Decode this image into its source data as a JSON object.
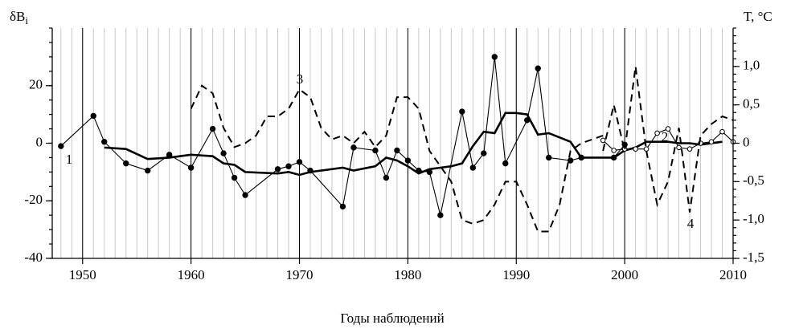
{
  "chart_data": {
    "type": "line",
    "xlabel": "Годы наблюдений",
    "ylabel": "δB",
    "ylabel_subscript": "i",
    "y2label": "T, °C",
    "xlim": [
      1947.2,
      2010
    ],
    "xticks": [
      1950,
      1960,
      1970,
      1980,
      1990,
      2000,
      2010
    ],
    "ylim": [
      -40,
      40
    ],
    "yticks": [
      -40,
      -20,
      0,
      20
    ],
    "y2lim": [
      -1.5,
      1.5
    ],
    "y2ticks": [
      {
        "value": -1.5,
        "label": "-1,5"
      },
      {
        "value": -1.0,
        "label": "-1,0"
      },
      {
        "value": -0.5,
        "label": "-0,5"
      },
      0,
      {
        "value": 0.5,
        "label": "0,5"
      },
      {
        "value": 1.0,
        "label": "1,0"
      }
    ],
    "grid": true,
    "series": [
      {
        "name": "1",
        "color": "#000",
        "style": "dots",
        "x": [
          1948,
          1951,
          1952,
          1954,
          1956,
          1958,
          1960,
          1962,
          1963,
          1964,
          1965,
          1968,
          1969,
          1970,
          1971,
          1974,
          1975,
          1977,
          1978,
          1979,
          1980,
          1981,
          1982,
          1983,
          1985,
          1986,
          1987,
          1988,
          1989,
          1991,
          1992,
          1993,
          1995,
          1996,
          1999,
          2000
        ],
        "values": [
          -1,
          9.5,
          0.5,
          -7,
          -9.5,
          -4,
          -8.5,
          5,
          -3.5,
          -12,
          -18,
          -9,
          -8,
          -6.5,
          -9.5,
          -22,
          -1.5,
          -2.5,
          -12,
          -2.5,
          -6,
          -9.5,
          -10,
          -25,
          11,
          -8.5,
          -3.5,
          30,
          -7,
          8,
          26,
          -5,
          -6,
          -5,
          -5,
          -0.5
        ]
      },
      {
        "color": "#000",
        "style": "thick",
        "x": [
          1952,
          1954,
          1956,
          1958,
          1960,
          1962,
          1963,
          1964,
          1965,
          1968,
          1969,
          1970,
          1971,
          1974,
          1975,
          1977,
          1978,
          1979,
          1980,
          1981,
          1982,
          1983,
          1984,
          1985,
          1986,
          1987,
          1988,
          1989,
          1990,
          1991,
          1992,
          1993,
          1994,
          1995,
          1996,
          1999,
          2000,
          2001,
          2002,
          2003,
          2004,
          2005,
          2006,
          2007,
          2008,
          2009
        ],
        "values": [
          -1.5,
          -2,
          -5.5,
          -5,
          -4,
          -4.5,
          -7,
          -7.5,
          -10,
          -10.5,
          -10,
          -11,
          -10,
          -8.5,
          -9.5,
          -8,
          -5,
          -6,
          -8,
          -10.5,
          -9,
          -8.5,
          -8,
          -7,
          -1,
          4,
          3.5,
          10.5,
          10.5,
          10,
          3,
          3.5,
          2,
          0.5,
          -5,
          -5,
          -2.5,
          -1.5,
          0.5,
          0.5,
          0.5,
          0,
          0,
          -0.5,
          0,
          0.5
        ]
      },
      {
        "name": "2",
        "color": "#000",
        "style": "open",
        "x": [
          1998,
          1999,
          2000,
          2001,
          2002,
          2003,
          2004,
          2005,
          2006,
          2007,
          2008,
          2009,
          2010
        ],
        "values": [
          1,
          -2.5,
          -2,
          -2,
          -2,
          3.5,
          5,
          -1.5,
          -2,
          0,
          0.5,
          4,
          0.5
        ]
      },
      {
        "name": "3",
        "color": "#000",
        "style": "dashed",
        "axis": "y2",
        "x": [
          1960,
          1961,
          1962,
          1963,
          1964,
          1965,
          1966,
          1967,
          1968,
          1969,
          1970,
          1971,
          1972,
          1973,
          1974,
          1975,
          1976,
          1977,
          1978,
          1979,
          1980,
          1981,
          1982,
          1983,
          1984,
          1985,
          1986,
          1987,
          1988,
          1989,
          1990,
          1991,
          1992,
          1993,
          1994,
          1995,
          1996,
          1997,
          1998
        ],
        "values": [
          0.45,
          0.75,
          0.65,
          0.2,
          -0.05,
          0.0,
          0.1,
          0.35,
          0.35,
          0.45,
          0.7,
          0.6,
          0.2,
          0.05,
          0.1,
          0.0,
          0.15,
          -0.05,
          0.1,
          0.6,
          0.6,
          0.45,
          -0.1,
          -0.3,
          -0.5,
          -1.0,
          -1.05,
          -1.0,
          -0.8,
          -0.5,
          -0.5,
          -0.8,
          -1.15,
          -1.15,
          -0.8,
          -0.1,
          0.0,
          0.05,
          0.1
        ]
      },
      {
        "name": "4",
        "color": "#000",
        "style": "dashed",
        "axis": "y2",
        "x": [
          1998,
          1999,
          2000,
          2001,
          2002,
          2003,
          2004,
          2005,
          2006,
          2007,
          2008,
          2009,
          2010
        ],
        "values": [
          -0.1,
          0.5,
          -0.1,
          1.0,
          -0.1,
          -0.8,
          -0.5,
          0.2,
          -0.9,
          0.1,
          0.25,
          0.35,
          0.3
        ]
      }
    ]
  }
}
